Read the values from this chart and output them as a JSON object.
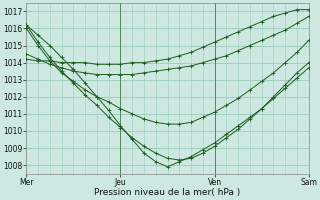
{
  "title": "",
  "xlabel": "Pression niveau de la mer( hPa )",
  "ylabel": "",
  "background_color": "#cce8e0",
  "plot_bg_color": "#cce8e0",
  "grid_color": "#99ccbb",
  "line_color": "#1a5c1a",
  "xlim": [
    0,
    72
  ],
  "ylim": [
    1007.5,
    1017.5
  ],
  "yticks": [
    1008,
    1009,
    1010,
    1011,
    1012,
    1013,
    1014,
    1015,
    1016,
    1017
  ],
  "xtick_positions": [
    0,
    24,
    48,
    72
  ],
  "xtick_labels": [
    "Mer",
    "Jeu",
    "Ven",
    "Sam"
  ],
  "vlines": [
    24,
    48
  ],
  "series": [
    {
      "x": [
        0,
        3,
        6,
        9,
        12,
        15,
        18,
        21,
        24,
        27,
        30,
        33,
        36,
        39,
        42,
        45,
        48,
        51,
        54,
        57,
        60,
        63,
        66,
        69,
        72
      ],
      "y": [
        1016.2,
        1015.6,
        1015.0,
        1014.3,
        1013.6,
        1012.8,
        1012.0,
        1011.2,
        1010.3,
        1009.5,
        1008.7,
        1008.2,
        1007.9,
        1008.2,
        1008.5,
        1008.9,
        1009.3,
        1009.8,
        1010.3,
        1010.8,
        1011.3,
        1011.9,
        1012.5,
        1013.1,
        1013.7
      ]
    },
    {
      "x": [
        0,
        3,
        6,
        9,
        12,
        15,
        18,
        21,
        24,
        27,
        30,
        33,
        36,
        39,
        42,
        45,
        48,
        51,
        54,
        57,
        60,
        63,
        66,
        69,
        72
      ],
      "y": [
        1016.2,
        1015.2,
        1014.3,
        1013.5,
        1012.8,
        1012.1,
        1011.5,
        1010.8,
        1010.2,
        1009.6,
        1009.1,
        1008.7,
        1008.4,
        1008.3,
        1008.4,
        1008.7,
        1009.1,
        1009.6,
        1010.1,
        1010.7,
        1011.3,
        1012.0,
        1012.7,
        1013.4,
        1014.0
      ]
    },
    {
      "x": [
        0,
        3,
        6,
        9,
        12,
        15,
        18,
        21,
        24,
        27,
        30,
        33,
        36,
        39,
        42,
        45,
        48,
        51,
        54,
        57,
        60,
        63,
        66,
        69,
        72
      ],
      "y": [
        1016.0,
        1015.0,
        1014.1,
        1013.4,
        1012.9,
        1012.4,
        1012.0,
        1011.7,
        1011.3,
        1011.0,
        1010.7,
        1010.5,
        1010.4,
        1010.4,
        1010.5,
        1010.8,
        1011.1,
        1011.5,
        1011.9,
        1012.4,
        1012.9,
        1013.4,
        1014.0,
        1014.6,
        1015.3
      ]
    },
    {
      "x": [
        0,
        3,
        6,
        9,
        12,
        15,
        18,
        21,
        24,
        27,
        30,
        33,
        36,
        39,
        42,
        45,
        48,
        51,
        54,
        57,
        60,
        63,
        66,
        69,
        72
      ],
      "y": [
        1014.5,
        1014.2,
        1013.9,
        1013.7,
        1013.5,
        1013.4,
        1013.3,
        1013.3,
        1013.3,
        1013.3,
        1013.4,
        1013.5,
        1013.6,
        1013.7,
        1013.8,
        1014.0,
        1014.2,
        1014.4,
        1014.7,
        1015.0,
        1015.3,
        1015.6,
        1015.9,
        1016.3,
        1016.7
      ]
    },
    {
      "x": [
        0,
        3,
        6,
        9,
        12,
        15,
        18,
        21,
        24,
        27,
        30,
        33,
        36,
        39,
        42,
        45,
        48,
        51,
        54,
        57,
        60,
        63,
        66,
        69,
        72
      ],
      "y": [
        1014.2,
        1014.1,
        1014.1,
        1014.0,
        1014.0,
        1014.0,
        1013.9,
        1013.9,
        1013.9,
        1014.0,
        1014.0,
        1014.1,
        1014.2,
        1014.4,
        1014.6,
        1014.9,
        1015.2,
        1015.5,
        1015.8,
        1016.1,
        1016.4,
        1016.7,
        1016.9,
        1017.1,
        1017.1
      ]
    }
  ]
}
